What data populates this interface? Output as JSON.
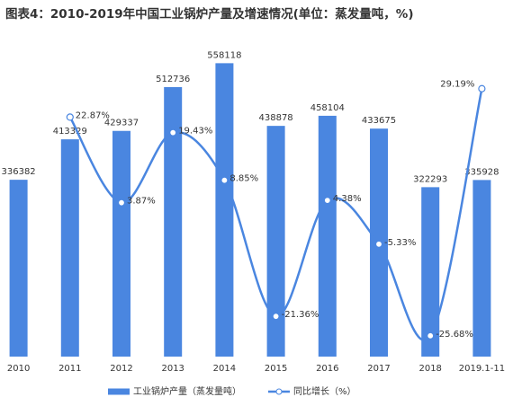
{
  "chart_data": {
    "type": "bar_line",
    "title": "图表4：2010-2019年中国工业锅炉产量及增速情况(单位：蒸发量吨，%)",
    "categories": [
      "2010",
      "2011",
      "2012",
      "2013",
      "2014",
      "2015",
      "2016",
      "2017",
      "2018",
      "2019.1-11"
    ],
    "series": [
      {
        "name": "工业锅炉产量（蒸发量吨）",
        "type": "bar",
        "color": "#4a86e0",
        "values": [
          336382,
          413329,
          429337,
          512736,
          558118,
          438878,
          458104,
          433675,
          322293,
          335928
        ]
      },
      {
        "name": "同比增长（%）",
        "type": "line",
        "axis": "y2",
        "color": "#4a86e0",
        "values": [
          null,
          22.87,
          3.87,
          19.43,
          8.85,
          -21.36,
          4.38,
          -5.33,
          -25.68,
          29.19
        ],
        "value_labels": [
          null,
          "22.87%",
          "3.87%",
          "19.43%",
          "8.85%",
          "-21.36%",
          "4.38%",
          "-5.33%",
          "-25.68%",
          "29.19%"
        ],
        "label_colors": [
          null,
          "#1f3b5c",
          "#1f3b5c",
          "#1f3b5c",
          "#1f3b5c",
          "#c00000",
          "#1f3b5c",
          "#c00000",
          "#c00000",
          "#c00000"
        ]
      }
    ],
    "ylim": [
      0,
      610000
    ],
    "y2lim": [
      -30.3,
      40.9
    ],
    "legend": "bottom"
  }
}
